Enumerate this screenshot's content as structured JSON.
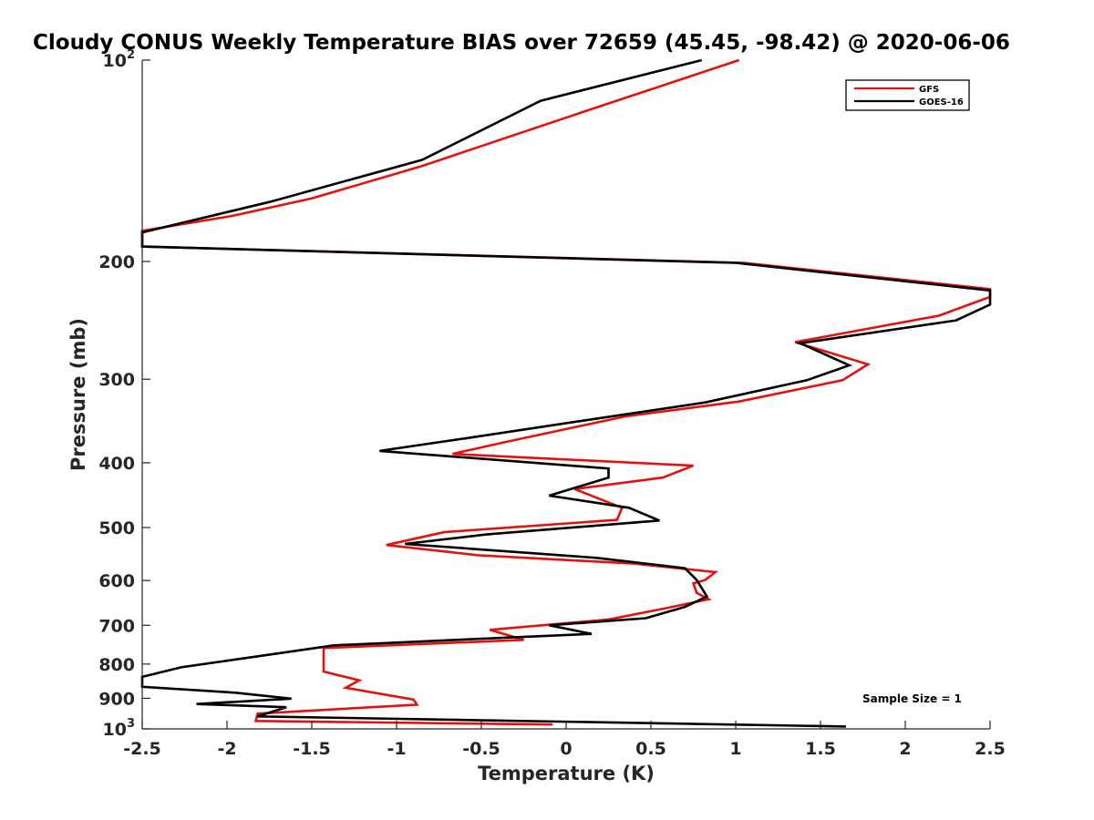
{
  "chart_data": {
    "type": "line",
    "title": "Cloudy CONUS Weekly Temperature BIAS over 72659 (45.45, -98.42) @ 2020-06-06",
    "xlabel": "Temperature (K)",
    "ylabel": "Pressure (mb)",
    "xlim": [
      -2.5,
      2.5
    ],
    "ylim": [
      100,
      1000
    ],
    "y_scale": "log",
    "y_reversed": true,
    "grid": false,
    "legend_position": "top-right",
    "x_ticks": [
      -2.5,
      -2,
      -1.5,
      -1,
      -0.5,
      0,
      0.5,
      1,
      1.5,
      2,
      2.5
    ],
    "x_tick_labels": [
      "-2.5",
      "-2",
      "-1.5",
      "-1",
      "-0.5",
      "0",
      "0.5",
      "1",
      "1.5",
      "2",
      "2.5"
    ],
    "y_ticks": [
      {
        "value": 100,
        "base": "10",
        "exp": "2"
      },
      {
        "value": 200,
        "label": "200"
      },
      {
        "value": 300,
        "label": "300"
      },
      {
        "value": 400,
        "label": "400"
      },
      {
        "value": 500,
        "label": "500"
      },
      {
        "value": 600,
        "label": "600"
      },
      {
        "value": 700,
        "label": "700"
      },
      {
        "value": 800,
        "label": "800"
      },
      {
        "value": 900,
        "label": "900"
      },
      {
        "value": 1000,
        "base": "10",
        "exp": "3"
      }
    ],
    "annotation": "Sample Size = 1",
    "series": [
      {
        "name": "GFS",
        "color": "#e4120f",
        "points": [
          [
            1.02,
            100
          ],
          [
            0.21,
            117
          ],
          [
            -0.85,
            144
          ],
          [
            -1.5,
            161
          ],
          [
            -1.97,
            171
          ],
          [
            -2.5,
            180
          ],
          [
            -2.5,
            190
          ],
          [
            1.05,
            201
          ],
          [
            2.5,
            220
          ],
          [
            2.5,
            226
          ],
          [
            2.2,
            241
          ],
          [
            1.35,
            264
          ],
          [
            1.78,
            285
          ],
          [
            1.63,
            301
          ],
          [
            1.02,
            324
          ],
          [
            0.35,
            341
          ],
          [
            -0.37,
            373
          ],
          [
            -0.67,
            388
          ],
          [
            0.75,
            404
          ],
          [
            0.57,
            421
          ],
          [
            0.05,
            438
          ],
          [
            0.33,
            467
          ],
          [
            0.3,
            487
          ],
          [
            -0.72,
            508
          ],
          [
            -1.06,
            531
          ],
          [
            -0.52,
            550
          ],
          [
            0.4,
            566
          ],
          [
            0.88,
            583
          ],
          [
            0.82,
            599
          ],
          [
            0.75,
            606
          ],
          [
            0.77,
            626
          ],
          [
            0.84,
            640
          ],
          [
            0.6,
            659
          ],
          [
            0.25,
            686
          ],
          [
            -0.45,
            711
          ],
          [
            -0.25,
            736
          ],
          [
            -1.43,
            757
          ],
          [
            -1.43,
            821
          ],
          [
            -1.22,
            846
          ],
          [
            -1.3,
            868
          ],
          [
            -0.9,
            904
          ],
          [
            -0.88,
            920
          ],
          [
            -1.82,
            949
          ],
          [
            -1.83,
            973
          ],
          [
            -0.08,
            985
          ]
        ]
      },
      {
        "name": "GOES-16",
        "color": "#000000",
        "points": [
          [
            0.8,
            100
          ],
          [
            -0.15,
            115
          ],
          [
            -0.85,
            141
          ],
          [
            -1.75,
            163
          ],
          [
            -2.5,
            181
          ],
          [
            -2.5,
            190
          ],
          [
            1.0,
            201
          ],
          [
            2.5,
            221
          ],
          [
            2.5,
            232
          ],
          [
            2.3,
            245
          ],
          [
            1.38,
            265
          ],
          [
            1.67,
            286
          ],
          [
            1.42,
            301
          ],
          [
            0.82,
            325
          ],
          [
            0.1,
            346
          ],
          [
            -0.6,
            368
          ],
          [
            -1.1,
            384
          ],
          [
            0.25,
            408
          ],
          [
            0.25,
            421
          ],
          [
            -0.1,
            448
          ],
          [
            0.37,
            467
          ],
          [
            0.55,
            488
          ],
          [
            -0.47,
            512
          ],
          [
            -0.95,
            529
          ],
          [
            0.18,
            555
          ],
          [
            0.7,
            575
          ],
          [
            0.77,
            599
          ],
          [
            0.83,
            634
          ],
          [
            0.7,
            657
          ],
          [
            0.47,
            683
          ],
          [
            -0.1,
            700
          ],
          [
            0.15,
            721
          ],
          [
            -1.37,
            750
          ],
          [
            -1.85,
            781
          ],
          [
            -2.27,
            809
          ],
          [
            -2.5,
            836
          ],
          [
            -2.5,
            865
          ],
          [
            -1.95,
            883
          ],
          [
            -1.62,
            901
          ],
          [
            -2.18,
            918
          ],
          [
            -1.65,
            928
          ],
          [
            -1.82,
            958
          ],
          [
            1.65,
            992
          ]
        ]
      }
    ]
  }
}
